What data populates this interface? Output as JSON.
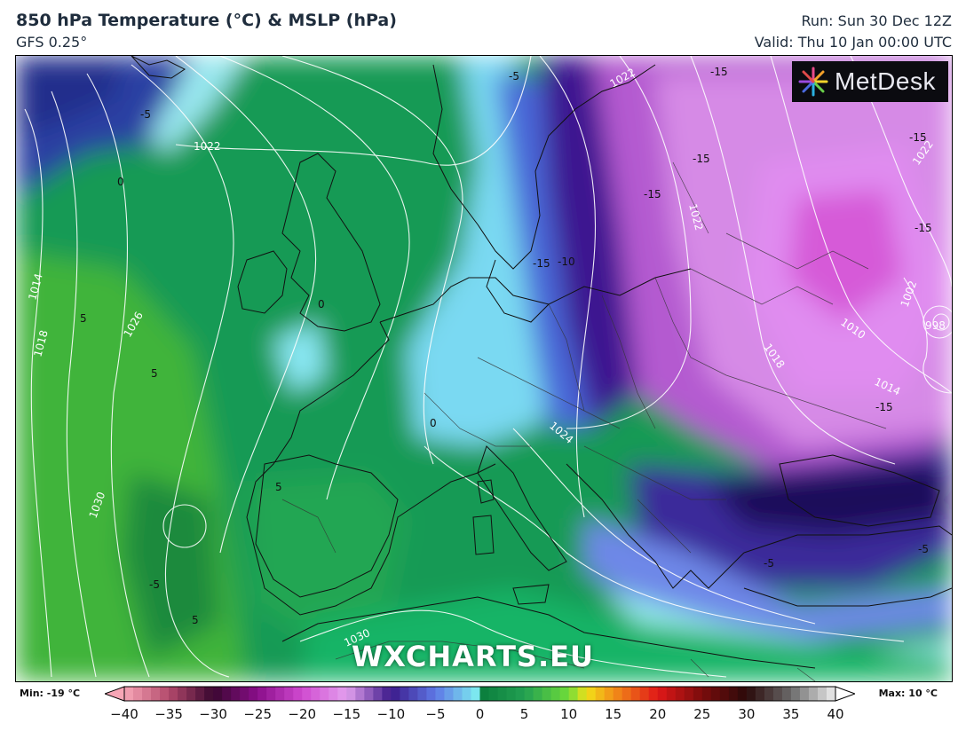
{
  "header": {
    "title": "850 hPa Temperature (°C) & MSLP (hPa)",
    "model": "GFS 0.25°",
    "run": "Run: Sun 30 Dec 12Z",
    "valid": "Valid: Thu 10 Jan 00:00 UTC"
  },
  "logo": {
    "text": "MetDesk"
  },
  "watermark": "WXCHARTS.EU",
  "map": {
    "temperature_labels": [
      "-5",
      "0",
      "-5",
      "-15",
      "-15",
      "-15",
      "-15",
      "-15",
      "-10",
      "-15",
      "0",
      "5",
      "5",
      "5",
      "-5",
      "5",
      "0",
      "-15",
      "-5",
      "-5"
    ],
    "pressure_labels": [
      "1022",
      "1026",
      "1014",
      "1018",
      "1030",
      "1022",
      "1022",
      "1024",
      "1002",
      "998",
      "1010",
      "1018",
      "1014",
      "1022",
      "1030"
    ]
  },
  "colorbar": {
    "min_label": "Min: -19 °C",
    "max_label": "Max: 10 °C",
    "ticks": [
      "−40",
      "−35",
      "−30",
      "−25",
      "−20",
      "−15",
      "−10",
      "−5",
      "0",
      "5",
      "10",
      "15",
      "20",
      "25",
      "30",
      "35",
      "40"
    ],
    "stops": [
      {
        "value": -40,
        "color": "#f7a6b6"
      },
      {
        "value": -35,
        "color": "#b34a6c"
      },
      {
        "value": -30,
        "color": "#3a0730"
      },
      {
        "value": -25,
        "color": "#8a0e8a"
      },
      {
        "value": -20,
        "color": "#d04ad0"
      },
      {
        "value": -15,
        "color": "#e3a0ee"
      },
      {
        "value": -10,
        "color": "#3c1a8a"
      },
      {
        "value": -5,
        "color": "#5e78e6"
      },
      {
        "value": 0,
        "color": "#7ff3f0"
      },
      {
        "value": 0.01,
        "color": "#0a7c3c"
      },
      {
        "value": 5,
        "color": "#22a052"
      },
      {
        "value": 10,
        "color": "#6fdc3a"
      },
      {
        "value": 12,
        "color": "#f2e018"
      },
      {
        "value": 15,
        "color": "#f29018"
      },
      {
        "value": 20,
        "color": "#e01818"
      },
      {
        "value": 25,
        "color": "#7a0c0c"
      },
      {
        "value": 30,
        "color": "#2a0a0a"
      },
      {
        "value": 35,
        "color": "#6a6a6a"
      },
      {
        "value": 40,
        "color": "#eeeeee"
      }
    ]
  }
}
